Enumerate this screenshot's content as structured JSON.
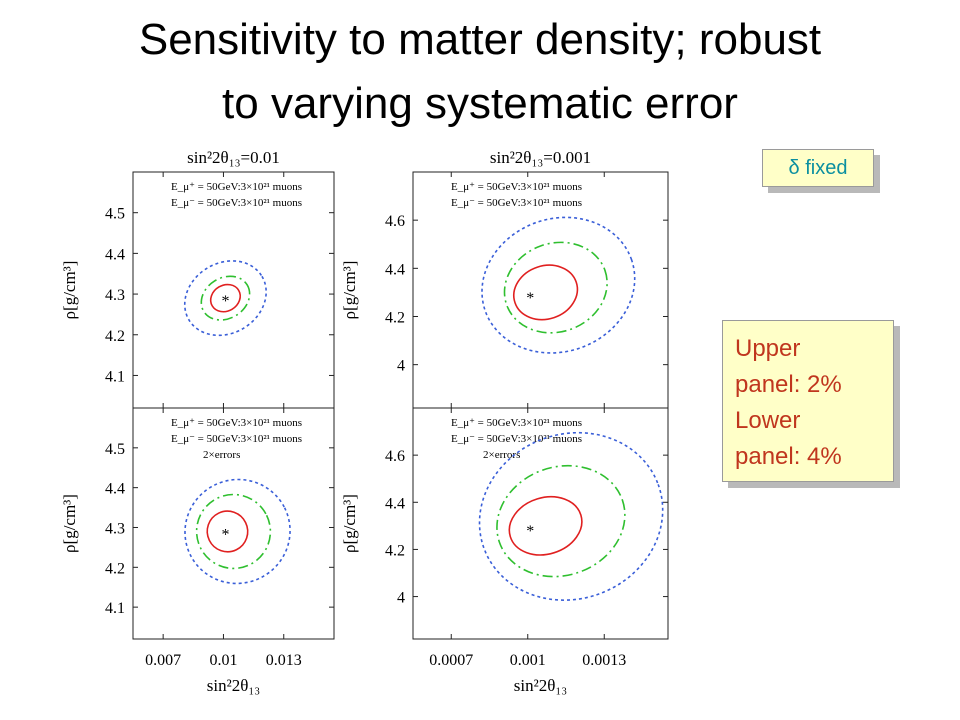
{
  "slide": {
    "title_line1": "Sensitivity to matter density; robust",
    "title_line2": "to varying systematic error",
    "delta_box": "δ fixed",
    "panel_box": [
      "Upper",
      "panel: 2%",
      "Lower",
      "panel: 4%"
    ]
  },
  "colors": {
    "outer_contour": "#3a5fd8",
    "middle_contour": "#2fbf2f",
    "inner_contour": "#e02020",
    "delta_text": "#0b8fa0",
    "panel_text": "#c0361e",
    "box_fill": "#ffffc8"
  },
  "chart_data": [
    {
      "type": "scatter",
      "panel": "upper-left",
      "title": "sin²2θ₁₃=0.01",
      "ylabel": "ρ[g/cm³]",
      "xlabel": "",
      "legend": [
        "E_μ⁺ = 50GeV:3×10²¹ muons",
        "E_μ⁻ = 50GeV:3×10²¹ muons"
      ],
      "xlim": [
        0.0055,
        0.0155
      ],
      "ylim": [
        4.02,
        4.6
      ],
      "xticks": [
        0.007,
        0.01,
        0.013
      ],
      "yticks": [
        4.1,
        4.2,
        4.3,
        4.4,
        4.5
      ],
      "best_fit": {
        "x": 0.0101,
        "y": 4.29,
        "marker": "*"
      },
      "contours": [
        {
          "level": "outer",
          "style": "dotted",
          "cx": 0.0101,
          "cy": 4.29,
          "rx": 0.0019,
          "ry": 0.14,
          "tilt": -1
        },
        {
          "level": "middle",
          "style": "dash-dot",
          "cx": 0.0101,
          "cy": 4.29,
          "rx": 0.0011,
          "ry": 0.085,
          "tilt": -1
        },
        {
          "level": "inner",
          "style": "solid",
          "cx": 0.0101,
          "cy": 4.29,
          "rx": 0.0007,
          "ry": 0.05,
          "tilt": -1
        }
      ]
    },
    {
      "type": "scatter",
      "panel": "upper-right",
      "title": "sin²2θ₁₃=0.001",
      "ylabel": "ρ[g/cm³]",
      "xlabel": "",
      "legend": [
        "E_μ⁺ = 50GeV:3×10²¹ muons",
        "E_μ⁻ = 50GeV:3×10²¹ muons"
      ],
      "xlim": [
        0.00055,
        0.00155
      ],
      "ylim": [
        3.82,
        4.8
      ],
      "xticks": [
        0.0007,
        0.001,
        0.0013
      ],
      "yticks": [
        4,
        4.2,
        4.4,
        4.6
      ],
      "best_fit": {
        "x": 0.00101,
        "y": 4.29,
        "marker": "*"
      },
      "contours": [
        {
          "level": "outer",
          "style": "dotted",
          "cx": 0.00112,
          "cy": 4.33,
          "rx": 0.0004,
          "ry": 0.3,
          "tilt": -1
        },
        {
          "level": "middle",
          "style": "dash-dot",
          "cx": 0.00111,
          "cy": 4.32,
          "rx": 0.00027,
          "ry": 0.2,
          "tilt": -1
        },
        {
          "level": "inner",
          "style": "solid",
          "cx": 0.00107,
          "cy": 4.3,
          "rx": 0.00017,
          "ry": 0.12,
          "tilt": -1
        }
      ]
    },
    {
      "type": "scatter",
      "panel": "lower-left",
      "title": "",
      "ylabel": "ρ[g/cm³]",
      "xlabel": "sin²2θ₁₃",
      "legend": [
        "E_μ⁺ = 50GeV:3×10²¹ muons",
        "E_μ⁻ = 50GeV:3×10²¹ muons",
        "2×errors"
      ],
      "xlim": [
        0.0055,
        0.0155
      ],
      "ylim": [
        4.02,
        4.6
      ],
      "xticks": [
        0.007,
        0.01,
        0.013
      ],
      "yticks": [
        4.1,
        4.2,
        4.3,
        4.4,
        4.5
      ],
      "best_fit": {
        "x": 0.0101,
        "y": 4.29,
        "marker": "*"
      },
      "contours": [
        {
          "level": "outer",
          "style": "dotted",
          "cx": 0.0107,
          "cy": 4.29,
          "rx": 0.0028,
          "ry": 0.16,
          "tilt": -1
        },
        {
          "level": "middle",
          "style": "dash-dot",
          "cx": 0.0105,
          "cy": 4.29,
          "rx": 0.002,
          "ry": 0.11,
          "tilt": -1
        },
        {
          "level": "inner",
          "style": "solid",
          "cx": 0.0102,
          "cy": 4.29,
          "rx": 0.0011,
          "ry": 0.06,
          "tilt": -1
        }
      ]
    },
    {
      "type": "scatter",
      "panel": "lower-right",
      "title": "",
      "ylabel": "ρ[g/cm³]",
      "xlabel": "sin²2θ₁₃",
      "legend": [
        "E_μ⁺ = 50GeV:3×10²¹ muons",
        "E_μ⁻ = 50GeV:3×10²¹ muons",
        "2×errors"
      ],
      "xlim": [
        0.00055,
        0.00155
      ],
      "ylim": [
        3.82,
        4.8
      ],
      "xticks": [
        0.0007,
        0.001,
        0.0013
      ],
      "yticks": [
        4,
        4.2,
        4.4,
        4.6
      ],
      "best_fit": {
        "x": 0.00101,
        "y": 4.29,
        "marker": "*"
      },
      "contours": [
        {
          "level": "outer",
          "style": "dotted",
          "cx": 0.00117,
          "cy": 4.34,
          "rx": 0.00047,
          "ry": 0.38,
          "tilt": -1
        },
        {
          "level": "middle",
          "style": "dash-dot",
          "cx": 0.00113,
          "cy": 4.32,
          "rx": 0.00034,
          "ry": 0.25,
          "tilt": -1
        },
        {
          "level": "inner",
          "style": "solid",
          "cx": 0.00107,
          "cy": 4.3,
          "rx": 0.0002,
          "ry": 0.13,
          "tilt": -1
        }
      ]
    }
  ]
}
